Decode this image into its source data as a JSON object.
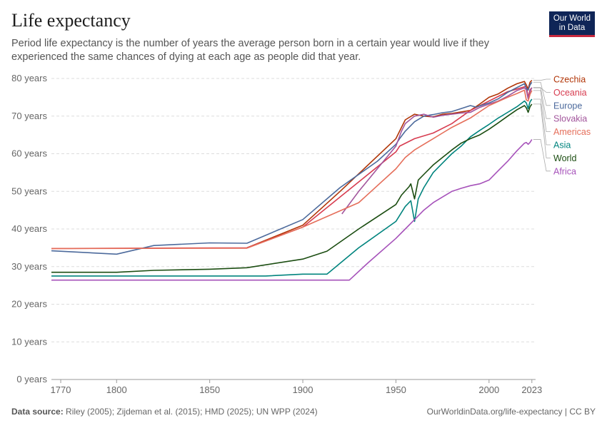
{
  "header": {
    "title": "Life expectancy",
    "subtitle": "Period life expectancy is the number of years the average person born in a certain year would live if they experienced the same chances of dying at each age as people did that year."
  },
  "logo": {
    "line1": "Our World",
    "line2": "in Data"
  },
  "footer": {
    "source_label": "Data source:",
    "source_text": "Riley (2005); Zijdeman et al. (2015); HMD (2025); UN WPP (2024)",
    "url_license": "OurWorldinData.org/life-expectancy | CC BY"
  },
  "chart_data": {
    "type": "line",
    "xlim": [
      1765,
      2025
    ],
    "ylim": [
      0,
      80
    ],
    "x_ticks": [
      1770,
      1800,
      1850,
      1900,
      1950,
      2000,
      2023
    ],
    "y_ticks": [
      {
        "value": 0,
        "label": "0 years"
      },
      {
        "value": 10,
        "label": "10 years"
      },
      {
        "value": 20,
        "label": "20 years"
      },
      {
        "value": 30,
        "label": "30 years"
      },
      {
        "value": 40,
        "label": "40 years"
      },
      {
        "value": 50,
        "label": "50 years"
      },
      {
        "value": 60,
        "label": "60 years"
      },
      {
        "value": 70,
        "label": "70 years"
      },
      {
        "value": 80,
        "label": "80 years"
      }
    ],
    "grid": true,
    "legend": "right",
    "series": [
      {
        "name": "Czechia",
        "color": "#b13507",
        "points": [
          [
            1870,
            35
          ],
          [
            1900,
            41
          ],
          [
            1920,
            50
          ],
          [
            1950,
            64
          ],
          [
            1953,
            67
          ],
          [
            1955,
            69
          ],
          [
            1960,
            70.5
          ],
          [
            1965,
            70
          ],
          [
            1970,
            69.8
          ],
          [
            1975,
            70.5
          ],
          [
            1980,
            70.7
          ],
          [
            1985,
            71.1
          ],
          [
            1990,
            71.5
          ],
          [
            1995,
            73.2
          ],
          [
            2000,
            75
          ],
          [
            2005,
            75.9
          ],
          [
            2010,
            77.4
          ],
          [
            2015,
            78.6
          ],
          [
            2019,
            79.2
          ],
          [
            2020,
            78.3
          ],
          [
            2021,
            77.2
          ],
          [
            2022,
            79
          ],
          [
            2023,
            79.5
          ]
        ]
      },
      {
        "name": "Oceania",
        "color": "#d73c50",
        "points": [
          [
            1765,
            34.8
          ],
          [
            1870,
            35
          ],
          [
            1900,
            40.5
          ],
          [
            1950,
            60.5
          ],
          [
            1952,
            62
          ],
          [
            1960,
            64
          ],
          [
            1970,
            65.5
          ],
          [
            1980,
            68
          ],
          [
            1990,
            71.5
          ],
          [
            2000,
            74
          ],
          [
            2010,
            76.5
          ],
          [
            2015,
            77.2
          ],
          [
            2019,
            77.8
          ],
          [
            2020,
            77.9
          ],
          [
            2021,
            75
          ],
          [
            2022,
            77
          ],
          [
            2023,
            77.5
          ]
        ]
      },
      {
        "name": "Europe",
        "color": "#4c6a9c",
        "points": [
          [
            1765,
            34.2
          ],
          [
            1800,
            33.3
          ],
          [
            1820,
            35.6
          ],
          [
            1850,
            36.3
          ],
          [
            1870,
            36.2
          ],
          [
            1900,
            42.5
          ],
          [
            1920,
            51
          ],
          [
            1940,
            58
          ],
          [
            1950,
            62.5
          ],
          [
            1952,
            64
          ],
          [
            1955,
            66
          ],
          [
            1960,
            68.5
          ],
          [
            1965,
            70
          ],
          [
            1970,
            70.4
          ],
          [
            1975,
            70.9
          ],
          [
            1980,
            71.2
          ],
          [
            1985,
            72
          ],
          [
            1990,
            72.8
          ],
          [
            1993,
            72.4
          ],
          [
            1995,
            72.7
          ],
          [
            2000,
            73.5
          ],
          [
            2005,
            74.6
          ],
          [
            2010,
            76.3
          ],
          [
            2015,
            77.6
          ],
          [
            2019,
            78.6
          ],
          [
            2020,
            77.4
          ],
          [
            2021,
            76.9
          ],
          [
            2022,
            78.3
          ],
          [
            2023,
            79
          ]
        ]
      },
      {
        "name": "Slovakia",
        "color": "#a2559c",
        "points": [
          [
            1921,
            44
          ],
          [
            1930,
            50
          ],
          [
            1950,
            62
          ],
          [
            1953,
            66
          ],
          [
            1955,
            68
          ],
          [
            1960,
            70
          ],
          [
            1965,
            70.5
          ],
          [
            1970,
            69.7
          ],
          [
            1975,
            70.2
          ],
          [
            1980,
            70.5
          ],
          [
            1985,
            70.8
          ],
          [
            1990,
            71
          ],
          [
            1995,
            72.3
          ],
          [
            2000,
            73.2
          ],
          [
            2005,
            74
          ],
          [
            2010,
            75.3
          ],
          [
            2015,
            76.8
          ],
          [
            2019,
            77.5
          ],
          [
            2020,
            77
          ],
          [
            2021,
            74.6
          ],
          [
            2022,
            76.5
          ],
          [
            2023,
            77.6
          ]
        ]
      },
      {
        "name": "Americas",
        "color": "#e56e5a",
        "points": [
          [
            1765,
            34.8
          ],
          [
            1870,
            34.9
          ],
          [
            1900,
            40.5
          ],
          [
            1930,
            47
          ],
          [
            1950,
            56
          ],
          [
            1955,
            59
          ],
          [
            1960,
            61
          ],
          [
            1965,
            62.5
          ],
          [
            1970,
            64
          ],
          [
            1975,
            65.5
          ],
          [
            1980,
            67
          ],
          [
            1990,
            69.5
          ],
          [
            2000,
            72.8
          ],
          [
            2010,
            75
          ],
          [
            2015,
            76
          ],
          [
            2019,
            76.9
          ],
          [
            2020,
            74.3
          ],
          [
            2021,
            74
          ],
          [
            2022,
            75.8
          ],
          [
            2023,
            76.8
          ]
        ]
      },
      {
        "name": "Asia",
        "color": "#00847e",
        "points": [
          [
            1765,
            27.5
          ],
          [
            1880,
            27.5
          ],
          [
            1900,
            28
          ],
          [
            1913,
            28
          ],
          [
            1930,
            35
          ],
          [
            1950,
            42
          ],
          [
            1955,
            46
          ],
          [
            1958,
            47.5
          ],
          [
            1960,
            42
          ],
          [
            1962,
            48
          ],
          [
            1965,
            51
          ],
          [
            1970,
            55
          ],
          [
            1975,
            57.5
          ],
          [
            1980,
            60
          ],
          [
            1985,
            62
          ],
          [
            1990,
            64.5
          ],
          [
            1995,
            66.2
          ],
          [
            2000,
            67.8
          ],
          [
            2005,
            69.5
          ],
          [
            2010,
            71
          ],
          [
            2015,
            72.5
          ],
          [
            2019,
            74
          ],
          [
            2020,
            73.5
          ],
          [
            2021,
            72
          ],
          [
            2022,
            73.8
          ],
          [
            2023,
            74.5
          ]
        ]
      },
      {
        "name": "World",
        "color": "#1b4d11",
        "points": [
          [
            1765,
            28.5
          ],
          [
            1800,
            28.5
          ],
          [
            1820,
            29
          ],
          [
            1850,
            29.3
          ],
          [
            1870,
            29.7
          ],
          [
            1900,
            32
          ],
          [
            1913,
            34.1
          ],
          [
            1930,
            40
          ],
          [
            1950,
            46.5
          ],
          [
            1953,
            49
          ],
          [
            1957,
            51.2
          ],
          [
            1958,
            52
          ],
          [
            1960,
            48
          ],
          [
            1962,
            53
          ],
          [
            1965,
            54.5
          ],
          [
            1970,
            57
          ],
          [
            1975,
            59
          ],
          [
            1980,
            61
          ],
          [
            1985,
            62.8
          ],
          [
            1990,
            64
          ],
          [
            1995,
            65
          ],
          [
            2000,
            66.5
          ],
          [
            2005,
            68.2
          ],
          [
            2010,
            70
          ],
          [
            2015,
            71.7
          ],
          [
            2019,
            72.8
          ],
          [
            2020,
            72.2
          ],
          [
            2021,
            71
          ],
          [
            2022,
            72.5
          ],
          [
            2023,
            73.2
          ]
        ]
      },
      {
        "name": "Africa",
        "color": "#a652ba",
        "points": [
          [
            1765,
            26.4
          ],
          [
            1925,
            26.4
          ],
          [
            1935,
            31
          ],
          [
            1950,
            37.5
          ],
          [
            1955,
            40
          ],
          [
            1960,
            42.5
          ],
          [
            1965,
            45
          ],
          [
            1970,
            47
          ],
          [
            1975,
            48.5
          ],
          [
            1980,
            50
          ],
          [
            1985,
            50.8
          ],
          [
            1990,
            51.5
          ],
          [
            1995,
            52
          ],
          [
            2000,
            53
          ],
          [
            2005,
            55.5
          ],
          [
            2010,
            58
          ],
          [
            2015,
            60.8
          ],
          [
            2019,
            62.8
          ],
          [
            2020,
            63
          ],
          [
            2021,
            62.5
          ],
          [
            2022,
            63
          ],
          [
            2023,
            63.8
          ]
        ]
      }
    ]
  }
}
